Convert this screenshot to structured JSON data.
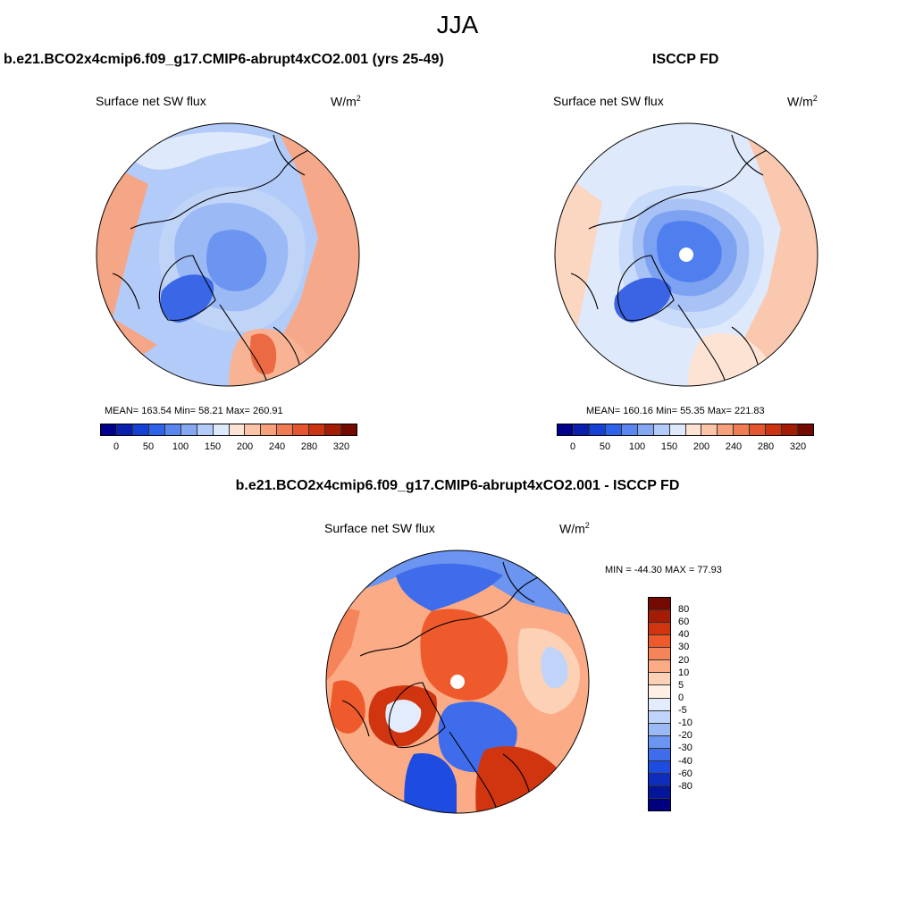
{
  "figure": {
    "season": "JJA"
  },
  "panels": [
    {
      "id": "model",
      "title": "b.e21.BCO2x4cmip6.f09_g17.CMIP6-abrupt4xCO2.001 (yrs 25-49)",
      "variable": "Surface net SW flux",
      "units": "W/m",
      "units_exp": "2",
      "stats": "MEAN= 163.54  Min=  58.21  Max= 260.91",
      "pole_gap": false
    },
    {
      "id": "obs",
      "title": "ISCCP FD",
      "variable": "Surface net SW flux",
      "units": "W/m",
      "units_exp": "2",
      "stats": "MEAN= 160.16  Min=  55.35  Max= 221.83",
      "pole_gap": true
    },
    {
      "id": "diff",
      "title": "b.e21.BCO2x4cmip6.f09_g17.CMIP6-abrupt4xCO2.001 - ISCCP FD",
      "variable": "Surface net SW flux",
      "units": "W/m",
      "units_exp": "2",
      "stats": "MIN = -44.30 MAX =  77.93",
      "pole_gap": true
    }
  ],
  "colorbars": {
    "absolute": {
      "colors": [
        "#00008b",
        "#0a1fae",
        "#1542d4",
        "#2e62ea",
        "#5a86ef",
        "#86a8f3",
        "#b3cbf8",
        "#dfe9fc",
        "#fde3d4",
        "#fbc4a8",
        "#f6a07c",
        "#f07c54",
        "#e5552f",
        "#cc3310",
        "#a41c04",
        "#730a00"
      ],
      "labels": [
        "0",
        "50",
        "100",
        "150",
        "200",
        "240",
        "280",
        "320"
      ]
    },
    "difference": {
      "colors": [
        "#730a00",
        "#a41c04",
        "#d03510",
        "#ee5a2c",
        "#f6845a",
        "#fbab86",
        "#fdd1b6",
        "#fef0e4",
        "#e3ecfc",
        "#c0d4f9",
        "#9bb9f5",
        "#6b95f0",
        "#3e6ceb",
        "#1e4ce0",
        "#0f2dbd",
        "#03169a",
        "#00007e"
      ],
      "labels": [
        "80",
        "60",
        "40",
        "30",
        "20",
        "10",
        "5",
        "0",
        "-5",
        "-10",
        "-20",
        "-30",
        "-40",
        "-60",
        "-80"
      ]
    }
  },
  "maps": {
    "model_fills": [
      "#f4a686",
      "#f6a98a",
      "#c0d4f8",
      "#9bb9f5",
      "#6b95f0",
      "#3a67e6",
      "#f7b394",
      "#dfe9fc",
      "#eb6a44"
    ],
    "obs_fills": [
      "#fbd6c0",
      "#f9c8ae",
      "#c9dbfa",
      "#a8c2f6",
      "#7da2f2",
      "#4f7fee",
      "#3a64e3",
      "#fde3d4"
    ],
    "diff_fills": [
      "#f6845a",
      "#ee5a2c",
      "#fbab86",
      "#6b95f0",
      "#3e6ceb",
      "#1e4ce0",
      "#c0d4f9",
      "#9bb9f5",
      "#d03510",
      "#fdd1b6",
      "#e3ecfc"
    ]
  }
}
